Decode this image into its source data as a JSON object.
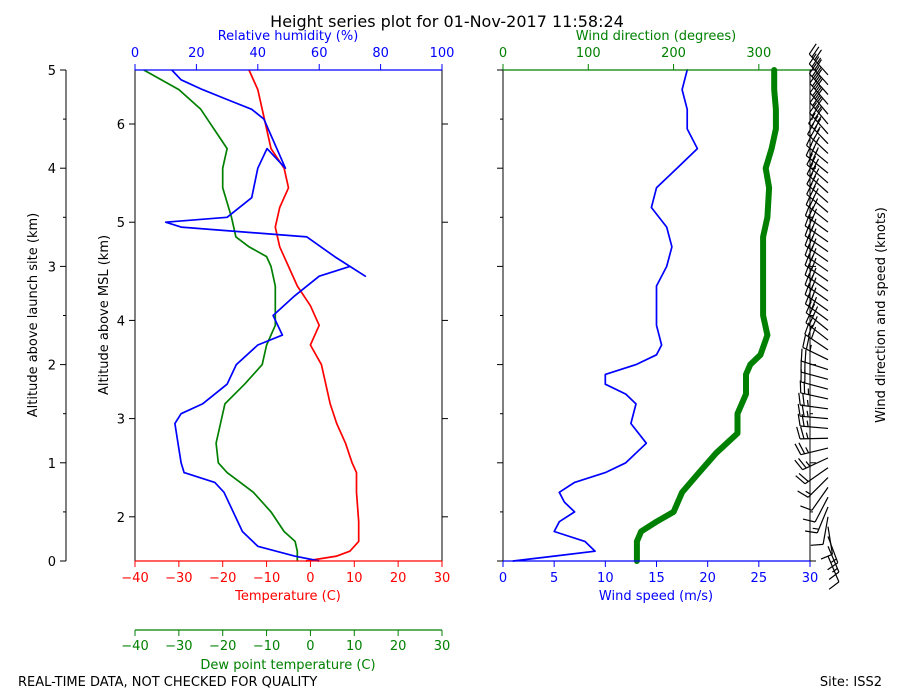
{
  "title": "Height series plot for 01-Nov-2017 11:58:24",
  "footer": {
    "left": "REAL-TIME DATA, NOT CHECKED FOR QUALITY",
    "right": "Site: ISS2"
  },
  "colors": {
    "red": "#ff0000",
    "green": "#008000",
    "blue": "#0000ff",
    "black": "#000000"
  },
  "chart_data": [
    {
      "type": "line",
      "name": "thermo-panel",
      "outer_axis": {
        "label": "Altitude above launch site (km)",
        "range": [
          0,
          5
        ],
        "ticks": [
          0,
          1,
          2,
          3,
          4,
          5
        ],
        "ticklabels": [
          "0",
          "1",
          "2",
          "3",
          "4",
          "5"
        ]
      },
      "inner_axis": {
        "label": "Altitude above MSL (km)",
        "range": [
          1.55,
          6.55
        ],
        "ticks": [
          2,
          3,
          4,
          5,
          6
        ],
        "ticklabels": [
          "2",
          "3",
          "4",
          "5",
          "6"
        ]
      },
      "top_axis": {
        "label": "Relative humidity (%)",
        "range": [
          0,
          100
        ],
        "ticks": [
          0,
          20,
          40,
          60,
          80,
          100
        ],
        "ticklabels": [
          "0",
          "20",
          "40",
          "60",
          "80",
          "100"
        ]
      },
      "bottom_axis": {
        "label": "Temperature (C)",
        "range": [
          -40,
          30
        ],
        "ticks": [
          -40,
          -30,
          -20,
          -10,
          0,
          10,
          20,
          30
        ],
        "ticklabels": [
          "−40",
          "−30",
          "−20",
          "−10",
          "0",
          "10",
          "20",
          "30"
        ]
      },
      "bottom_axis2": {
        "label": "Dew point temperature (C)",
        "range": [
          -40,
          30
        ],
        "ticks": [
          -40,
          -30,
          -20,
          -10,
          0,
          10,
          20,
          30
        ],
        "ticklabels": [
          "−40",
          "−30",
          "−20",
          "−10",
          "0",
          "10",
          "20",
          "30"
        ]
      },
      "series": [
        {
          "name": "Temperature (C)",
          "color": "red",
          "axis": "bottom",
          "points": [
            [
              -1,
              0.0
            ],
            [
              6,
              0.05
            ],
            [
              9,
              0.1
            ],
            [
              11,
              0.2
            ],
            [
              11,
              0.4
            ],
            [
              10.5,
              0.7
            ],
            [
              10.5,
              0.9
            ],
            [
              9.5,
              1.0
            ],
            [
              8,
              1.2
            ],
            [
              6,
              1.4
            ],
            [
              4.5,
              1.6
            ],
            [
              3.5,
              1.8
            ],
            [
              2.5,
              2.0
            ],
            [
              0,
              2.2
            ],
            [
              2,
              2.4
            ],
            [
              0,
              2.6
            ],
            [
              -3,
              2.8
            ],
            [
              -5,
              3.0
            ],
            [
              -7,
              3.2
            ],
            [
              -8,
              3.4
            ],
            [
              -7,
              3.6
            ],
            [
              -5,
              3.8
            ],
            [
              -6,
              4.0
            ],
            [
              -9,
              4.2
            ],
            [
              -10,
              4.4
            ],
            [
              -11,
              4.6
            ],
            [
              -12,
              4.8
            ],
            [
              -14,
              5.0
            ]
          ]
        },
        {
          "name": "Dew point temperature (C)",
          "color": "green",
          "axis": "bottom",
          "points": [
            [
              -3,
              0.0
            ],
            [
              -3,
              0.1
            ],
            [
              -3.5,
              0.2
            ],
            [
              -6,
              0.3
            ],
            [
              -9,
              0.5
            ],
            [
              -13,
              0.7
            ],
            [
              -16,
              0.8
            ],
            [
              -19,
              0.9
            ],
            [
              -21,
              1.0
            ],
            [
              -21.5,
              1.2
            ],
            [
              -20.5,
              1.4
            ],
            [
              -19.5,
              1.6
            ],
            [
              -15,
              1.8
            ],
            [
              -11,
              2.0
            ],
            [
              -10,
              2.2
            ],
            [
              -8,
              2.4
            ],
            [
              -8,
              2.6
            ],
            [
              -8,
              2.8
            ],
            [
              -9,
              3.0
            ],
            [
              -10,
              3.1
            ],
            [
              -14,
              3.2
            ],
            [
              -17,
              3.3
            ],
            [
              -18,
              3.5
            ],
            [
              -20,
              3.8
            ],
            [
              -20,
              4.0
            ],
            [
              -19,
              4.2
            ],
            [
              -22,
              4.4
            ],
            [
              -25,
              4.6
            ],
            [
              -30,
              4.8
            ],
            [
              -38,
              5.0
            ]
          ]
        },
        {
          "name": "Relative humidity (%)",
          "color": "blue",
          "axis": "top",
          "points": [
            [
              60,
              0.0
            ],
            [
              52,
              0.05
            ],
            [
              40,
              0.15
            ],
            [
              35,
              0.3
            ],
            [
              32,
              0.5
            ],
            [
              29,
              0.7
            ],
            [
              26,
              0.8
            ],
            [
              16,
              0.9
            ],
            [
              15,
              1.0
            ],
            [
              14,
              1.2
            ],
            [
              13,
              1.4
            ],
            [
              15,
              1.5
            ],
            [
              22,
              1.6
            ],
            [
              30,
              1.8
            ],
            [
              33,
              2.0
            ],
            [
              40,
              2.2
            ],
            [
              48,
              2.3
            ],
            [
              45,
              2.5
            ],
            [
              52,
              2.7
            ],
            [
              60,
              2.9
            ],
            [
              70,
              3.0
            ],
            [
              75,
              2.9
            ],
            [
              65,
              3.1
            ],
            [
              56,
              3.3
            ],
            [
              15,
              3.4
            ],
            [
              10,
              3.45
            ],
            [
              30,
              3.5
            ],
            [
              38,
              3.7
            ],
            [
              40,
              4.0
            ],
            [
              43,
              4.2
            ],
            [
              49,
              4.0
            ],
            [
              42,
              4.5
            ],
            [
              38,
              4.6
            ],
            [
              30,
              4.7
            ],
            [
              22,
              4.8
            ],
            [
              15,
              4.9
            ],
            [
              12,
              5.0
            ]
          ]
        }
      ]
    },
    {
      "type": "line",
      "name": "wind-panel",
      "top_axis": {
        "label": "Wind direction (degrees)",
        "range": [
          0,
          360
        ],
        "ticks": [
          0,
          100,
          200,
          300
        ],
        "ticklabels": [
          "0",
          "100",
          "200",
          "300"
        ]
      },
      "bottom_axis": {
        "label": "Wind speed (m/s)",
        "range": [
          0,
          30
        ],
        "ticks": [
          0,
          5,
          10,
          15,
          20,
          25,
          30
        ],
        "ticklabels": [
          "0",
          "5",
          "10",
          "15",
          "20",
          "25",
          "30"
        ]
      },
      "yrange": [
        0,
        5
      ],
      "series": [
        {
          "name": "Wind speed (m/s)",
          "color": "blue",
          "axis": "bottom",
          "points": [
            [
              1,
              0.0
            ],
            [
              5,
              0.05
            ],
            [
              9,
              0.1
            ],
            [
              8,
              0.2
            ],
            [
              5,
              0.3
            ],
            [
              5.5,
              0.4
            ],
            [
              7,
              0.5
            ],
            [
              6,
              0.6
            ],
            [
              5.5,
              0.7
            ],
            [
              7,
              0.8
            ],
            [
              10,
              0.9
            ],
            [
              12,
              1.0
            ],
            [
              14,
              1.2
            ],
            [
              12.5,
              1.4
            ],
            [
              13,
              1.6
            ],
            [
              12,
              1.7
            ],
            [
              10,
              1.8
            ],
            [
              10,
              1.9
            ],
            [
              13,
              2.0
            ],
            [
              15,
              2.1
            ],
            [
              15.5,
              2.2
            ],
            [
              15,
              2.4
            ],
            [
              15,
              2.8
            ],
            [
              16,
              3.0
            ],
            [
              16.5,
              3.2
            ],
            [
              16,
              3.4
            ],
            [
              14.5,
              3.6
            ],
            [
              15,
              3.8
            ],
            [
              17,
              4.0
            ],
            [
              19,
              4.2
            ],
            [
              18,
              4.4
            ],
            [
              18,
              4.6
            ],
            [
              17.5,
              4.8
            ],
            [
              18,
              5.0
            ]
          ]
        },
        {
          "name": "Wind direction (degrees)",
          "color": "green",
          "axis": "top",
          "points": [
            [
              157,
              0.0
            ],
            [
              157,
              0.2
            ],
            [
              162,
              0.3
            ],
            [
              180,
              0.4
            ],
            [
              200,
              0.5
            ],
            [
              210,
              0.7
            ],
            [
              230,
              0.9
            ],
            [
              250,
              1.1
            ],
            [
              275,
              1.3
            ],
            [
              275,
              1.5
            ],
            [
              285,
              1.7
            ],
            [
              285,
              1.9
            ],
            [
              290,
              2.0
            ],
            [
              302,
              2.1
            ],
            [
              310,
              2.3
            ],
            [
              305,
              2.5
            ],
            [
              305,
              2.7
            ],
            [
              305,
              3.0
            ],
            [
              305,
              3.3
            ],
            [
              310,
              3.5
            ],
            [
              312,
              3.8
            ],
            [
              308,
              4.0
            ],
            [
              315,
              4.2
            ],
            [
              320,
              4.4
            ],
            [
              320,
              4.6
            ],
            [
              318,
              4.8
            ],
            [
              318,
              5.0
            ]
          ]
        }
      ]
    }
  ],
  "barb_panel": {
    "label": "Wind direction and speed (knots)"
  }
}
